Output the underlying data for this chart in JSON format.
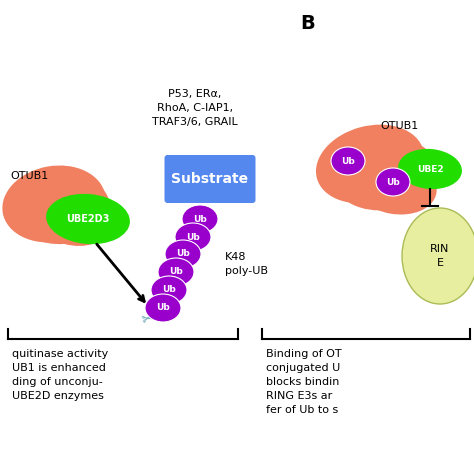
{
  "background_color": "#ffffff",
  "panel_A": {
    "otub1_label": "OTUB1",
    "otub1_color": "#F08060",
    "ube2d3_label": "UBE2D3",
    "ube2d3_color": "#22DD00",
    "substrate_label": "Substrate",
    "substrate_color": "#5588EE",
    "substrate_text_color": "#ffffff",
    "substrates_list": "P53, ERα,\nRhoA, C-IAP1,\nTRAF3/6, GRAIL",
    "k48_label": "K48\npoly-UB",
    "ub_color": "#9900CC",
    "ub_text_color": "#ffffff",
    "scissors_color": "#5599AA",
    "arrow_color": "#000000"
  },
  "panel_B": {
    "label": "B",
    "otub1_label": "OTUB1",
    "otub1_color": "#F08060",
    "ube2_label": "UBE2",
    "ube2_color": "#22DD00",
    "ring_label": "RIN\nE",
    "ring_color": "#E8EEA0",
    "ub_color": "#9900CC",
    "ub_text_color": "#ffffff"
  },
  "caption_A": "quitinase activity\nUB1 is enhanced\nding of unconju-\nUBE2D enzymes",
  "caption_B": "Binding of OT\nconjugated U\nblocks bindin\nRING E3s ar\nfer of Ub to s"
}
